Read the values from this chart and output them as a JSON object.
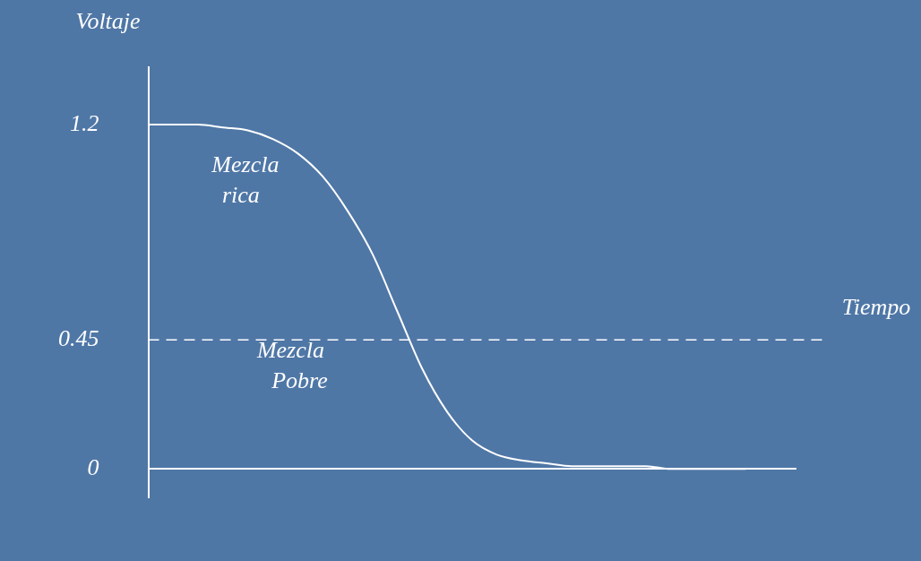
{
  "chart_data": {
    "type": "line",
    "xlabel": "Tiempo",
    "ylabel": "Voltaje",
    "categories": [
      null,
      null,
      null,
      null,
      null,
      null,
      null,
      null,
      null,
      null,
      null,
      null,
      null,
      null,
      null,
      null,
      null,
      null,
      null,
      null,
      null,
      null,
      null,
      null,
      null,
      null,
      null
    ],
    "series": [
      {
        "color": "#ffffff",
        "values": [
          1.2,
          1.2,
          1.2,
          1.19,
          1.18,
          1.15,
          1.1,
          1.02,
          0.9,
          0.75,
          0.55,
          0.35,
          0.2,
          0.1,
          0.05,
          0.03,
          0.02,
          0.01,
          0.01,
          0.01,
          0.01,
          0,
          0,
          0,
          0,
          null,
          null
        ]
      }
    ],
    "ylim": [
      -0.1,
      1.4
    ],
    "yticks": [
      0,
      0.45,
      1.2
    ],
    "ref_lines": [
      {
        "axis": "y",
        "value": 0.45,
        "color": "#ffffff",
        "line_style": "dashed"
      }
    ],
    "annotations": [
      "Mezcla\nrica",
      "Mezcla\nPobre"
    ],
    "grid": false,
    "legend": false,
    "marker": "none",
    "line_style": "solid"
  }
}
